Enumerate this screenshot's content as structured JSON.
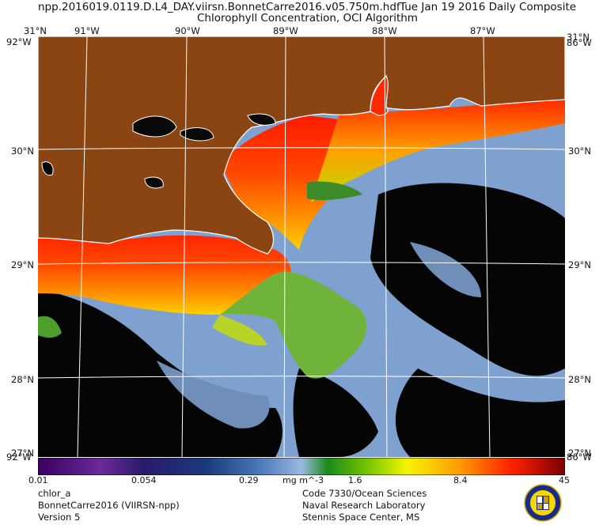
{
  "header": {
    "filename": "npp.2016019.0119.D.L4_DAY.viirsn.BonnetCarre2016.v05.750m.hdf",
    "date": "Tue Jan 19 2016 Daily Composite",
    "subtitle": "Chlorophyll Concentration, OCI Algorithm"
  },
  "map": {
    "lon_labels": [
      "91°W",
      "90°W",
      "89°W",
      "88°W",
      "87°W"
    ],
    "lat_labels": [
      "31°N",
      "30°N",
      "29°N",
      "28°N",
      "27°N"
    ],
    "corner_top_left_lat": "31°N",
    "corner_top_left_lon": "92°W",
    "corner_top_right_lat": "31°N",
    "corner_top_right_lon": "86°W",
    "corner_bottom_left_lat": "27°N",
    "corner_bottom_left_lon": "92°W",
    "corner_bottom_right_lat": "27°N",
    "corner_bottom_right_lon": "86°W",
    "colors": {
      "land": "#8b4513",
      "clear_water": "#7ea1cf",
      "no_data": "#000000",
      "coastline": "#ffffff"
    }
  },
  "colorbar": {
    "tick_labels": [
      "0.01",
      "0.054",
      "0.29",
      "1.6",
      "8.4",
      "45"
    ],
    "units": "mg m^-3",
    "min": 0.01,
    "max": 45,
    "scale": "log"
  },
  "footer": {
    "left": [
      "chlor_a",
      "BonnetCarre2016 (VIIRSN-npp)",
      "Version 5"
    ],
    "right": [
      "Code 7330/Ocean Sciences",
      "Naval Research Laboratory",
      "Stennis Space Center, MS"
    ]
  },
  "logo": {
    "icon": "nrl-seal-icon"
  }
}
